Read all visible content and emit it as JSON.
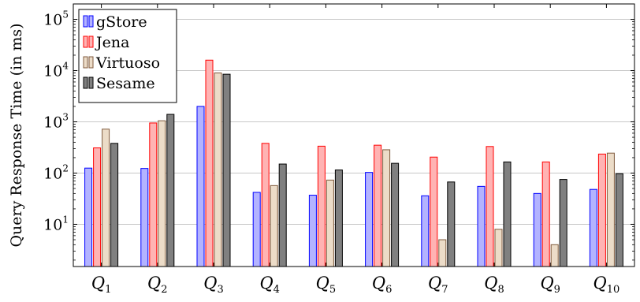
{
  "chart_data": {
    "type": "bar",
    "ylabel": "Query Response Time (in ms)",
    "yscale": "log",
    "ylim": [
      1.5,
      200000
    ],
    "yticks": [
      {
        "value": 10,
        "base": "10",
        "exp": "1"
      },
      {
        "value": 100,
        "base": "10",
        "exp": "2"
      },
      {
        "value": 1000,
        "base": "10",
        "exp": "3"
      },
      {
        "value": 10000,
        "base": "10",
        "exp": "4"
      },
      {
        "value": 100000,
        "base": "10",
        "exp": "5"
      }
    ],
    "grid": true,
    "legend": "top-left",
    "categories": [
      {
        "base": "Q",
        "sub": "1"
      },
      {
        "base": "Q",
        "sub": "2"
      },
      {
        "base": "Q",
        "sub": "3"
      },
      {
        "base": "Q",
        "sub": "4"
      },
      {
        "base": "Q",
        "sub": "5"
      },
      {
        "base": "Q",
        "sub": "6"
      },
      {
        "base": "Q",
        "sub": "7"
      },
      {
        "base": "Q",
        "sub": "8"
      },
      {
        "base": "Q",
        "sub": "9"
      },
      {
        "base": "Q",
        "sub": "10"
      }
    ],
    "series": [
      {
        "name": "gStore",
        "fill": "#b3b3ff",
        "stroke": "#0000ff",
        "values": [
          125,
          123,
          2000,
          42,
          37,
          103,
          36,
          55,
          40,
          48
        ]
      },
      {
        "name": "Jena",
        "fill": "#ffb3b3",
        "stroke": "#ff0000",
        "values": [
          310,
          950,
          16000,
          380,
          335,
          350,
          205,
          330,
          165,
          235
        ]
      },
      {
        "name": "Virtuoso",
        "fill": "#ecdcc8",
        "stroke": "#7f5a3c",
        "values": [
          720,
          1050,
          9000,
          57,
          73,
          285,
          5,
          8,
          4,
          245
        ]
      },
      {
        "name": "Sesame",
        "fill": "#808080",
        "stroke": "#000000",
        "values": [
          380,
          1400,
          8500,
          150,
          115,
          155,
          67,
          165,
          75,
          97
        ]
      }
    ]
  }
}
